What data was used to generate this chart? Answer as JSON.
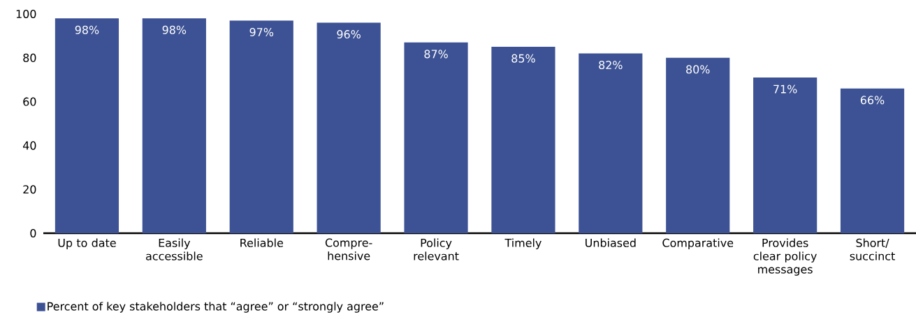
{
  "chart_data": {
    "type": "bar",
    "categories": [
      "Up to date",
      "Easily accessible",
      "Reliable",
      "Compre-hensive",
      "Policy relevant",
      "Timely",
      "Unbiased",
      "Comparative",
      "Provides clear policy messages",
      "Short/ succinct"
    ],
    "series": [
      {
        "name": "Percent of key stakeholders that “agree” or “strongly agree”",
        "color": "#3d5294",
        "values": [
          98,
          98,
          97,
          96,
          87,
          85,
          82,
          80,
          71,
          66
        ],
        "value_labels": [
          "98%",
          "98%",
          "97%",
          "96%",
          "87%",
          "85%",
          "82%",
          "80%",
          "71%",
          "66%"
        ]
      }
    ],
    "ylim": [
      0,
      100
    ],
    "yticks": [
      0,
      20,
      40,
      60,
      80,
      100
    ],
    "grid": false,
    "legend": "bottom left"
  }
}
